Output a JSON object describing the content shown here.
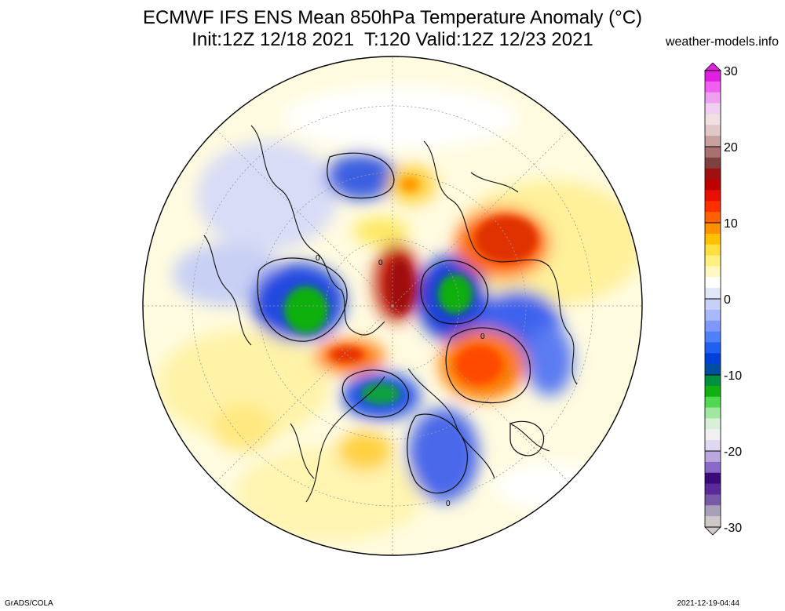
{
  "header": {
    "title_line1": "ECMWF IFS ENS Mean 850hPa Temperature Anomaly (°C)",
    "title_line2": "Init:12Z 12/18 2021  T:120 Valid:12Z 12/23 2021",
    "site": "weather-models.info"
  },
  "map": {
    "projection": "polar-stereographic-north",
    "variable": "850hPa Temperature Anomaly",
    "units": "°C",
    "contour_label": "0"
  },
  "colorbar": {
    "tick_labels": [
      "30",
      "20",
      "10",
      "0",
      "-10",
      "-20",
      "-30"
    ],
    "min": -30,
    "max": 30,
    "colors": [
      "#cfc8c8",
      "#a8a0b8",
      "#7a5aa8",
      "#5a2a9a",
      "#3a0a78",
      "#8a6ac8",
      "#b9a8e0",
      "#e0d8f0",
      "#f0f0f0",
      "#d8f0d8",
      "#a0e8a0",
      "#50d850",
      "#10b010",
      "#009040",
      "#004ea0",
      "#0040d8",
      "#2060f0",
      "#5080f8",
      "#8098f8",
      "#a8b8f8",
      "#c8d0f8",
      "#e0e8f8",
      "#ffffff",
      "#fff8c0",
      "#fff080",
      "#ffe040",
      "#ffc000",
      "#ff9000",
      "#ff6000",
      "#ff3000",
      "#e81000",
      "#c00000",
      "#a01010",
      "#804040",
      "#a87070",
      "#c8a0a0",
      "#e0c8c8",
      "#f0e0e0",
      "#f0d0f0",
      "#f0a0f0",
      "#f060f0",
      "#e020e0"
    ]
  },
  "footer": {
    "left": "GrADS/COLA",
    "right": "2021-12-19-04:44"
  }
}
